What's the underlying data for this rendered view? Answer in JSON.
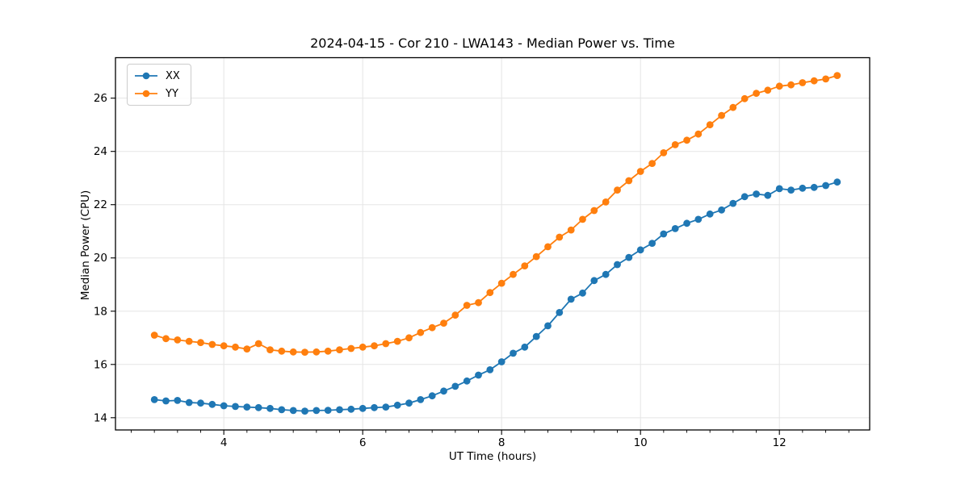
{
  "figure": {
    "title": "2024-04-15 - Cor 210 - LWA143 - Median Power vs. Time"
  },
  "chart_data": {
    "type": "line",
    "title": "2024-04-15 - Cor 210 - LWA143 - Median Power vs. Time",
    "xlabel": "UT Time (hours)",
    "ylabel": "Median Power (CPU)",
    "xlim": [
      2.44,
      13.3
    ],
    "ylim": [
      13.54,
      27.52
    ],
    "x_ticks": [
      4,
      6,
      8,
      10,
      12
    ],
    "y_ticks": [
      14,
      16,
      18,
      20,
      22,
      24,
      26
    ],
    "x_minor_step": 0.33333,
    "grid": true,
    "legend_position": "upper left",
    "marker": "o",
    "x": [
      3.0,
      3.167,
      3.333,
      3.5,
      3.667,
      3.833,
      4.0,
      4.167,
      4.333,
      4.5,
      4.667,
      4.833,
      5.0,
      5.167,
      5.333,
      5.5,
      5.667,
      5.833,
      6.0,
      6.167,
      6.333,
      6.5,
      6.667,
      6.833,
      7.0,
      7.167,
      7.333,
      7.5,
      7.667,
      7.833,
      8.0,
      8.167,
      8.333,
      8.5,
      8.667,
      8.833,
      9.0,
      9.167,
      9.333,
      9.5,
      9.667,
      9.833,
      10.0,
      10.167,
      10.333,
      10.5,
      10.667,
      10.833,
      11.0,
      11.167,
      11.333,
      11.5,
      11.667,
      11.833,
      12.0,
      12.167,
      12.333,
      12.5,
      12.667,
      12.833
    ],
    "series": [
      {
        "name": "XX",
        "color": "#1f77b4",
        "values": [
          14.68,
          14.63,
          14.65,
          14.57,
          14.55,
          14.5,
          14.45,
          14.42,
          14.4,
          14.38,
          14.35,
          14.3,
          14.27,
          14.25,
          14.27,
          14.28,
          14.3,
          14.32,
          14.35,
          14.38,
          14.4,
          14.47,
          14.55,
          14.68,
          14.82,
          15.0,
          15.18,
          15.38,
          15.6,
          15.8,
          16.1,
          16.42,
          16.65,
          17.05,
          17.45,
          17.95,
          18.45,
          18.68,
          19.15,
          19.38,
          19.75,
          20.02,
          20.3,
          20.55,
          20.9,
          21.1,
          21.3,
          21.45,
          21.65,
          21.8,
          22.05,
          22.3,
          22.4,
          22.35,
          22.6,
          22.55,
          22.62,
          22.65,
          22.72,
          22.85
        ]
      },
      {
        "name": "YY",
        "color": "#ff7f0e",
        "values": [
          17.1,
          16.97,
          16.92,
          16.87,
          16.82,
          16.75,
          16.7,
          16.65,
          16.58,
          16.78,
          16.55,
          16.5,
          16.47,
          16.46,
          16.47,
          16.5,
          16.55,
          16.6,
          16.65,
          16.7,
          16.78,
          16.87,
          17.0,
          17.2,
          17.38,
          17.55,
          17.85,
          18.22,
          18.32,
          18.7,
          19.05,
          19.38,
          19.7,
          20.05,
          20.42,
          20.78,
          21.05,
          21.45,
          21.78,
          22.1,
          22.55,
          22.9,
          23.25,
          23.55,
          23.95,
          24.25,
          24.42,
          24.65,
          25.0,
          25.35,
          25.65,
          25.98,
          26.18,
          26.3,
          26.45,
          26.5,
          26.58,
          26.65,
          26.72,
          26.85
        ]
      }
    ]
  },
  "style": {
    "grid_color": "#e5e5e5",
    "spine_color": "#000000",
    "tick_color": "#000000",
    "text_color": "#000000",
    "legend_border": "#cccccc",
    "background": "#ffffff",
    "series_colors": [
      "#1f77b4",
      "#ff7f0e"
    ]
  }
}
